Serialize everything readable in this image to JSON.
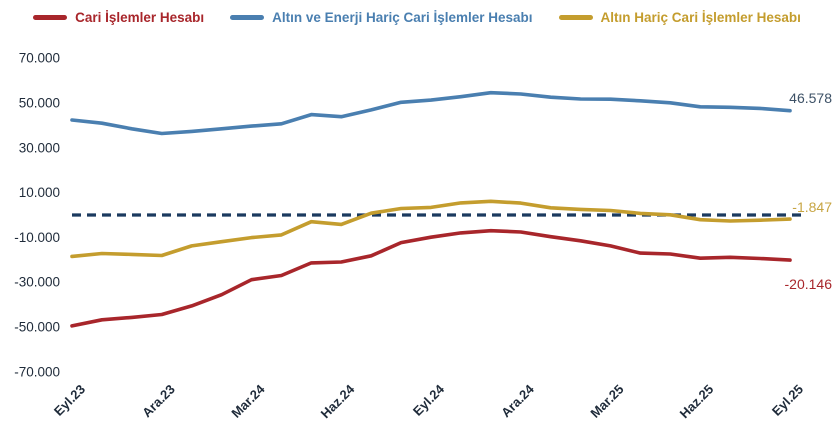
{
  "page": {
    "background": "#FFFFFF"
  },
  "chart_data": {
    "type": "line",
    "title": "",
    "xlabel": "",
    "ylabel": "",
    "grid": false,
    "legend_position": "top",
    "x": [
      "Eyl.23",
      "Eki.23",
      "Kas.23",
      "Ara.23",
      "Oca.24",
      "Şub.24",
      "Mar.24",
      "Nis.24",
      "May.24",
      "Haz.24",
      "Tem.24",
      "Ağu.24",
      "Eyl.24",
      "Eki.24",
      "Kas.24",
      "Ara.24",
      "Oca.25",
      "Şub.25",
      "Mar.25",
      "Nis.25",
      "May.25",
      "Haz.25",
      "Tem.25",
      "Ağu.25",
      "Eyl.25"
    ],
    "x_tick_labels": [
      "Eyl.23",
      "Ara.23",
      "Mar.24",
      "Haz.24",
      "Eyl.24",
      "Ara.24",
      "Mar.25",
      "Haz.25",
      "Eyl.25"
    ],
    "x_tick_every": 3,
    "y_ticks": {
      "labels": [
        "70.000",
        "50.000",
        "30.000",
        "10.000",
        "-10.000",
        "-30.000",
        "-50.000",
        "-70.000"
      ],
      "values": [
        70000,
        50000,
        30000,
        10000,
        -10000,
        -30000,
        -50000,
        -70000
      ]
    },
    "ylim": [
      -76000,
      76000
    ],
    "axis_text_color": "#1F2B3A",
    "reference_line": {
      "value": 0,
      "style": "dashed",
      "color": "#1B3A5F"
    },
    "series": [
      {
        "name": "Cari İşlemler Hesabı",
        "color": "#A8262B",
        "end_label": "-20.146",
        "end_label_color": "#A8262B",
        "values": [
          -49500,
          -46800,
          -45700,
          -44400,
          -40600,
          -35600,
          -28900,
          -27000,
          -21400,
          -21000,
          -18200,
          -12300,
          -9900,
          -8000,
          -7000,
          -7600,
          -9700,
          -11500,
          -13800,
          -17000,
          -17400,
          -19300,
          -18900,
          -19400,
          -20146
        ]
      },
      {
        "name": "Altın ve Enerji Hariç Cari İşlemler Hesabı",
        "color": "#4A7FB0",
        "end_label": "46.578",
        "end_label_color": "#3D5166",
        "values": [
          42400,
          41000,
          38500,
          36400,
          37300,
          38500,
          39700,
          40700,
          44800,
          43900,
          46900,
          50300,
          51300,
          52800,
          54600,
          54000,
          52600,
          51800,
          51700,
          51000,
          50100,
          48300,
          48100,
          47600,
          46578
        ]
      },
      {
        "name": "Altın Hariç Cari İşlemler Hesabı",
        "color": "#C49D2E",
        "end_label": "-1.847",
        "end_label_color": "#C7A543",
        "values": [
          -18500,
          -17200,
          -17600,
          -18100,
          -13800,
          -11900,
          -10100,
          -8900,
          -3000,
          -4200,
          800,
          2900,
          3400,
          5400,
          6100,
          5300,
          3200,
          2500,
          2000,
          700,
          100,
          -2100,
          -2700,
          -2300,
          -1847
        ]
      }
    ]
  }
}
